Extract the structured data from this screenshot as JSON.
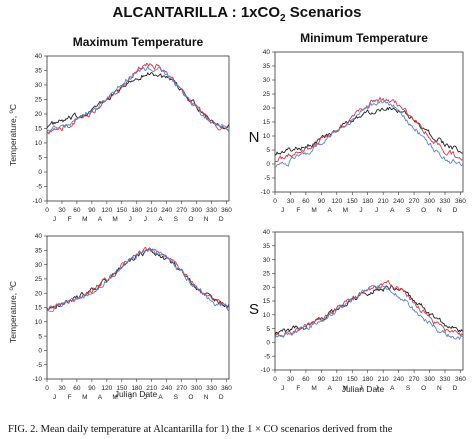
{
  "figure": {
    "title_main": "ALCANTARILLA : 1xCO",
    "title_sub": "2",
    "title_end": " Scenarios",
    "col_left": "Maximum Temperature",
    "col_right": "Minimum Temperature",
    "row_top": "N",
    "row_bottom": "S",
    "ylabel_main": "Temperature,",
    "ylabel_unit": "C",
    "ylabel_deg": "o",
    "xlabel": "Julian Date",
    "caption": "FIG. 2. Mean daily temperature at Alcantarilla for 1) the 1 × CO  scenarios derived from the"
  },
  "colors": {
    "black": "#222222",
    "red": "#d23a4a",
    "blue": "#5a86c8",
    "purple": "#8a5a9a"
  },
  "chart_data": [
    {
      "type": "line",
      "panel": "max-N",
      "title": "Maximum Temperature",
      "xlabel": "",
      "ylabel": "Temperature, °C",
      "xlim": [
        0,
        365
      ],
      "ylim": [
        -10,
        40
      ],
      "xticks": [
        0,
        30,
        60,
        90,
        120,
        150,
        180,
        210,
        240,
        270,
        300,
        330,
        360
      ],
      "yticks": [
        -10,
        -5,
        0,
        5,
        10,
        15,
        20,
        25,
        30,
        35,
        40
      ],
      "months": [
        "J",
        "F",
        "M",
        "A",
        "M",
        "J",
        "J",
        "A",
        "S",
        "O",
        "N",
        "D"
      ],
      "series": [
        {
          "color": "#222222",
          "x": [
            0,
            30,
            60,
            90,
            120,
            150,
            180,
            210,
            240,
            270,
            300,
            330,
            365
          ],
          "y": [
            16,
            17.5,
            19,
            21.5,
            25,
            29,
            32.5,
            34,
            32,
            28,
            23,
            18,
            16
          ]
        },
        {
          "color": "#d23a4a",
          "x": [
            0,
            30,
            60,
            90,
            120,
            150,
            180,
            210,
            240,
            270,
            300,
            330,
            365
          ],
          "y": [
            14,
            15,
            17.5,
            20.5,
            25,
            30,
            35,
            37,
            34,
            28,
            22,
            17,
            15
          ]
        },
        {
          "color": "#5a86c8",
          "x": [
            0,
            30,
            60,
            90,
            120,
            150,
            180,
            210,
            240,
            270,
            300,
            330,
            365
          ],
          "y": [
            14.5,
            15.5,
            18,
            21,
            25,
            30,
            34.5,
            36,
            33.5,
            28,
            22,
            17,
            15
          ]
        }
      ]
    },
    {
      "type": "line",
      "panel": "min-N",
      "title": "Minimum Temperature",
      "xlabel": "",
      "ylabel": "",
      "xlim": [
        0,
        365
      ],
      "ylim": [
        -10,
        40
      ],
      "xticks": [
        0,
        30,
        60,
        90,
        120,
        150,
        180,
        210,
        240,
        270,
        300,
        330,
        360
      ],
      "yticks": [
        -10,
        -5,
        0,
        5,
        10,
        15,
        20,
        25,
        30,
        35,
        40
      ],
      "months": [
        "J",
        "F",
        "M",
        "A",
        "M",
        "J",
        "J",
        "A",
        "S",
        "O",
        "N",
        "D"
      ],
      "series": [
        {
          "color": "#222222",
          "x": [
            0,
            30,
            60,
            90,
            120,
            150,
            180,
            210,
            240,
            270,
            300,
            330,
            365
          ],
          "y": [
            4,
            5,
            6.5,
            9,
            12,
            15.5,
            18.5,
            20,
            19.5,
            16,
            11,
            7,
            4.5
          ]
        },
        {
          "color": "#d23a4a",
          "x": [
            0,
            30,
            60,
            90,
            120,
            150,
            180,
            210,
            240,
            270,
            300,
            330,
            365
          ],
          "y": [
            1.5,
            3,
            5,
            8.5,
            12,
            16.5,
            21,
            23,
            21,
            16,
            10,
            5,
            2
          ]
        },
        {
          "color": "#5a86c8",
          "x": [
            0,
            30,
            60,
            90,
            120,
            150,
            180,
            210,
            240,
            270,
            300,
            330,
            365
          ],
          "y": [
            -0.5,
            1,
            4,
            8,
            11.5,
            16,
            20.5,
            22,
            19.5,
            13,
            7,
            2,
            0
          ]
        }
      ]
    },
    {
      "type": "line",
      "panel": "max-S",
      "title": "",
      "xlabel": "Julian Date",
      "ylabel": "Temperature, °C",
      "xlim": [
        0,
        365
      ],
      "ylim": [
        -10,
        40
      ],
      "xticks": [
        0,
        30,
        60,
        90,
        120,
        150,
        180,
        210,
        240,
        270,
        300,
        330,
        360
      ],
      "yticks": [
        -10,
        -5,
        0,
        5,
        10,
        15,
        20,
        25,
        30,
        35,
        40
      ],
      "months": [
        "J",
        "F",
        "M",
        "A",
        "M",
        "J",
        "J",
        "A",
        "S",
        "O",
        "N",
        "D"
      ],
      "series": [
        {
          "color": "#222222",
          "x": [
            0,
            30,
            60,
            90,
            120,
            150,
            180,
            210,
            240,
            270,
            300,
            330,
            365
          ],
          "y": [
            15.5,
            16.5,
            18.5,
            21,
            24.5,
            29,
            33,
            34.5,
            32,
            27.5,
            22.5,
            18,
            16
          ]
        },
        {
          "color": "#d23a4a",
          "x": [
            0,
            30,
            60,
            90,
            120,
            150,
            180,
            210,
            240,
            270,
            300,
            330,
            365
          ],
          "y": [
            15,
            16,
            18,
            21,
            25,
            29.5,
            33.5,
            35,
            32.5,
            27.5,
            22,
            17.5,
            15.5
          ]
        },
        {
          "color": "#5a86c8",
          "x": [
            0,
            30,
            60,
            90,
            120,
            150,
            180,
            210,
            240,
            270,
            300,
            330,
            365
          ],
          "y": [
            15,
            16,
            18,
            20.5,
            24.5,
            29,
            33,
            34.5,
            32,
            27,
            22,
            17,
            15
          ]
        }
      ]
    },
    {
      "type": "line",
      "panel": "min-S",
      "title": "",
      "xlabel": "Julian Date",
      "ylabel": "",
      "xlim": [
        0,
        365
      ],
      "ylim": [
        -10,
        40
      ],
      "xticks": [
        0,
        30,
        60,
        90,
        120,
        150,
        180,
        210,
        240,
        270,
        300,
        330,
        360
      ],
      "yticks": [
        -10,
        -5,
        0,
        5,
        10,
        15,
        20,
        25,
        30,
        35,
        40
      ],
      "months": [
        "J",
        "F",
        "M",
        "A",
        "M",
        "J",
        "J",
        "A",
        "S",
        "O",
        "N",
        "D"
      ],
      "series": [
        {
          "color": "#222222",
          "x": [
            0,
            30,
            60,
            90,
            120,
            150,
            180,
            210,
            240,
            270,
            300,
            330,
            365
          ],
          "y": [
            3.5,
            4.5,
            6,
            8.5,
            11.5,
            15,
            18,
            19.5,
            19,
            15.5,
            10.5,
            6.5,
            4
          ]
        },
        {
          "color": "#d23a4a",
          "x": [
            0,
            30,
            60,
            90,
            120,
            150,
            180,
            210,
            240,
            270,
            300,
            330,
            365
          ],
          "y": [
            2.5,
            3.5,
            5.5,
            8.5,
            12,
            15.5,
            19,
            21,
            20,
            14.5,
            9,
            4.5,
            2.5
          ]
        },
        {
          "color": "#5a86c8",
          "x": [
            0,
            30,
            60,
            90,
            120,
            150,
            180,
            210,
            240,
            270,
            300,
            330,
            365
          ],
          "y": [
            2,
            3,
            5,
            8,
            11.5,
            15.5,
            19.5,
            20,
            17,
            12,
            7,
            3,
            1.5
          ]
        }
      ]
    }
  ]
}
